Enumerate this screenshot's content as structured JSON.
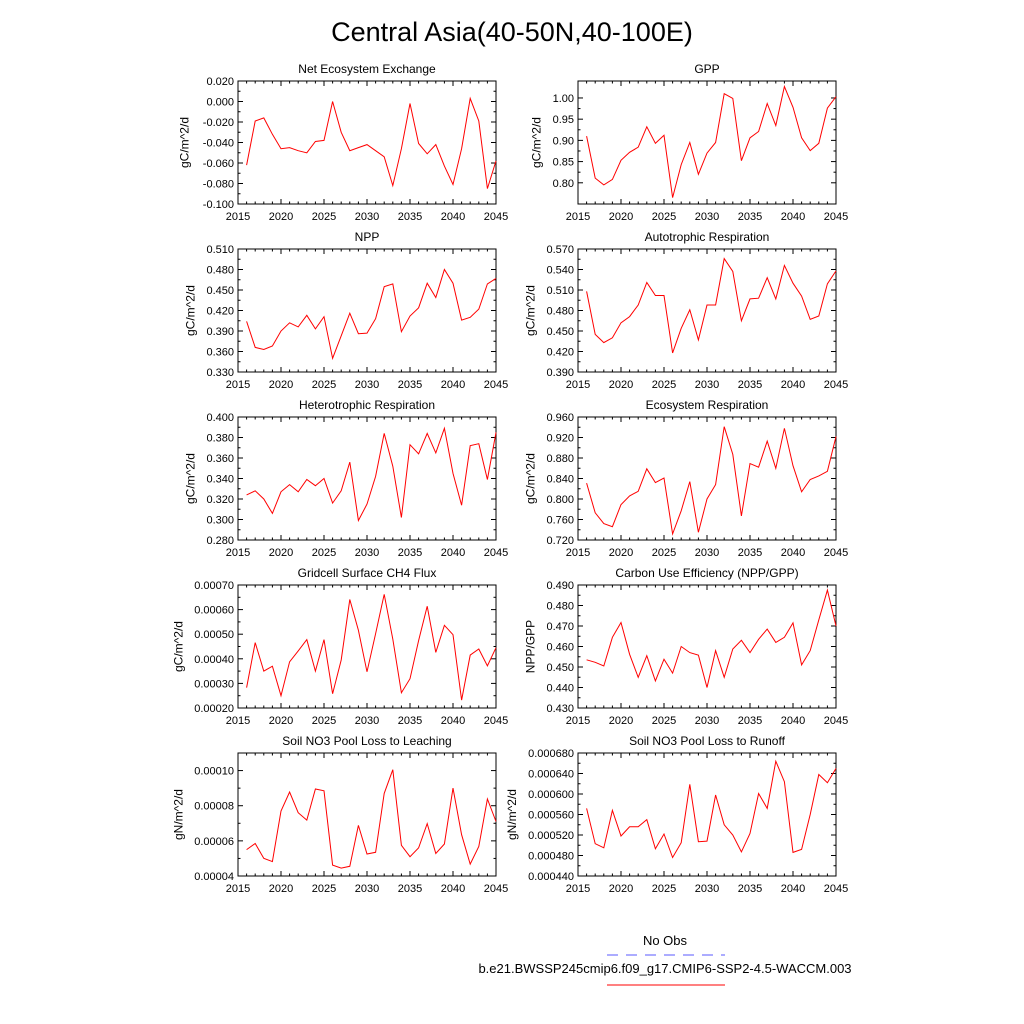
{
  "figure": {
    "title": "Central Asia(40-50N,40-100E)",
    "line_color": "#ff0000",
    "obs_line_color": "#5a5aff",
    "legend": {
      "obs_label": "No Obs",
      "model_label": "b.e21.BWSSP245cmip6.f09_g17.CMIP6-SSP2-4.5-WACCM.003"
    }
  },
  "chart_data": [
    {
      "type": "line",
      "title": "Net Ecosystem Exchange",
      "xlabel": "",
      "ylabel": "gC/m^2/d",
      "xlim": [
        2015,
        2045
      ],
      "ylim": [
        -0.1,
        0.02
      ],
      "xticks": [
        2015,
        2020,
        2025,
        2030,
        2035,
        2040,
        2045
      ],
      "yticks": [
        -0.1,
        -0.08,
        -0.06,
        -0.04,
        -0.02,
        0.0,
        0.02
      ],
      "ytick_labels": [
        "-0.100",
        "-0.080",
        "-0.060",
        "-0.040",
        "-0.020",
        "0.000",
        "0.020"
      ],
      "x": [
        2016,
        2017,
        2018,
        2019,
        2020,
        2021,
        2022,
        2023,
        2024,
        2025,
        2026,
        2027,
        2028,
        2029,
        2030,
        2031,
        2032,
        2033,
        2034,
        2035,
        2036,
        2037,
        2038,
        2039,
        2040,
        2041,
        2042,
        2043,
        2044,
        2045
      ],
      "values": [
        -0.062,
        -0.019,
        -0.016,
        -0.032,
        -0.046,
        -0.045,
        -0.048,
        -0.05,
        -0.039,
        -0.038,
        0.0,
        -0.03,
        -0.048,
        -0.045,
        -0.042,
        -0.048,
        -0.054,
        -0.082,
        -0.046,
        -0.002,
        -0.041,
        -0.051,
        -0.042,
        -0.063,
        -0.081,
        -0.046,
        0.003,
        -0.019,
        -0.085,
        -0.058
      ]
    },
    {
      "type": "line",
      "title": "GPP",
      "xlabel": "",
      "ylabel": "gC/m^2/d",
      "xlim": [
        2015,
        2045
      ],
      "ylim": [
        0.75,
        1.04
      ],
      "xticks": [
        2015,
        2020,
        2025,
        2030,
        2035,
        2040,
        2045
      ],
      "yticks": [
        0.8,
        0.85,
        0.9,
        0.95,
        1.0
      ],
      "ytick_labels": [
        "0.80",
        "0.85",
        "0.90",
        "0.95",
        "1.00"
      ],
      "x": [
        2016,
        2017,
        2018,
        2019,
        2020,
        2021,
        2022,
        2023,
        2024,
        2025,
        2026,
        2027,
        2028,
        2029,
        2030,
        2031,
        2032,
        2033,
        2034,
        2035,
        2036,
        2037,
        2038,
        2039,
        2040,
        2041,
        2042,
        2043,
        2044,
        2045
      ],
      "values": [
        0.91,
        0.811,
        0.795,
        0.808,
        0.853,
        0.872,
        0.884,
        0.932,
        0.893,
        0.912,
        0.765,
        0.843,
        0.895,
        0.82,
        0.87,
        0.895,
        1.01,
        0.999,
        0.852,
        0.906,
        0.921,
        0.987,
        0.935,
        1.027,
        0.978,
        0.906,
        0.876,
        0.893,
        0.976,
        1.003
      ]
    },
    {
      "type": "line",
      "title": "NPP",
      "xlabel": "",
      "ylabel": "gC/m^2/d",
      "xlim": [
        2015,
        2045
      ],
      "ylim": [
        0.33,
        0.51
      ],
      "xticks": [
        2015,
        2020,
        2025,
        2030,
        2035,
        2040,
        2045
      ],
      "yticks": [
        0.33,
        0.36,
        0.39,
        0.42,
        0.45,
        0.48,
        0.51
      ],
      "ytick_labels": [
        "0.330",
        "0.360",
        "0.390",
        "0.420",
        "0.450",
        "0.480",
        "0.510"
      ],
      "x": [
        2016,
        2017,
        2018,
        2019,
        2020,
        2021,
        2022,
        2023,
        2024,
        2025,
        2026,
        2027,
        2028,
        2029,
        2030,
        2031,
        2032,
        2033,
        2034,
        2035,
        2036,
        2037,
        2038,
        2039,
        2040,
        2041,
        2042,
        2043,
        2044,
        2045
      ],
      "values": [
        0.404,
        0.366,
        0.363,
        0.368,
        0.39,
        0.402,
        0.396,
        0.413,
        0.393,
        0.411,
        0.35,
        0.383,
        0.416,
        0.386,
        0.387,
        0.408,
        0.455,
        0.459,
        0.389,
        0.412,
        0.424,
        0.46,
        0.439,
        0.48,
        0.46,
        0.406,
        0.41,
        0.422,
        0.459,
        0.467
      ]
    },
    {
      "type": "line",
      "title": "Autotrophic Respiration",
      "xlabel": "",
      "ylabel": "gC/m^2/d",
      "xlim": [
        2015,
        2045
      ],
      "ylim": [
        0.39,
        0.57
      ],
      "xticks": [
        2015,
        2020,
        2025,
        2030,
        2035,
        2040,
        2045
      ],
      "yticks": [
        0.39,
        0.42,
        0.45,
        0.48,
        0.51,
        0.54,
        0.57
      ],
      "ytick_labels": [
        "0.390",
        "0.420",
        "0.450",
        "0.480",
        "0.510",
        "0.540",
        "0.570"
      ],
      "x": [
        2016,
        2017,
        2018,
        2019,
        2020,
        2021,
        2022,
        2023,
        2024,
        2025,
        2026,
        2027,
        2028,
        2029,
        2030,
        2031,
        2032,
        2033,
        2034,
        2035,
        2036,
        2037,
        2038,
        2039,
        2040,
        2041,
        2042,
        2043,
        2044,
        2045
      ],
      "values": [
        0.508,
        0.445,
        0.433,
        0.44,
        0.462,
        0.471,
        0.488,
        0.521,
        0.502,
        0.502,
        0.418,
        0.454,
        0.481,
        0.437,
        0.488,
        0.488,
        0.556,
        0.537,
        0.465,
        0.497,
        0.498,
        0.528,
        0.497,
        0.546,
        0.52,
        0.501,
        0.467,
        0.472,
        0.519,
        0.538
      ]
    },
    {
      "type": "line",
      "title": "Heterotrophic Respiration",
      "xlabel": "",
      "ylabel": "gC/m^2/d",
      "xlim": [
        2015,
        2045
      ],
      "ylim": [
        0.28,
        0.4
      ],
      "xticks": [
        2015,
        2020,
        2025,
        2030,
        2035,
        2040,
        2045
      ],
      "yticks": [
        0.28,
        0.3,
        0.32,
        0.34,
        0.36,
        0.38,
        0.4
      ],
      "ytick_labels": [
        "0.280",
        "0.300",
        "0.320",
        "0.340",
        "0.360",
        "0.380",
        "0.400"
      ],
      "x": [
        2016,
        2017,
        2018,
        2019,
        2020,
        2021,
        2022,
        2023,
        2024,
        2025,
        2026,
        2027,
        2028,
        2029,
        2030,
        2031,
        2032,
        2033,
        2034,
        2035,
        2036,
        2037,
        2038,
        2039,
        2040,
        2041,
        2042,
        2043,
        2044,
        2045
      ],
      "values": [
        0.324,
        0.328,
        0.32,
        0.306,
        0.327,
        0.334,
        0.327,
        0.339,
        0.333,
        0.34,
        0.316,
        0.328,
        0.356,
        0.299,
        0.315,
        0.342,
        0.384,
        0.352,
        0.302,
        0.373,
        0.364,
        0.384,
        0.365,
        0.389,
        0.345,
        0.314,
        0.372,
        0.374,
        0.339,
        0.385
      ]
    },
    {
      "type": "line",
      "title": "Ecosystem Respiration",
      "xlabel": "",
      "ylabel": "gC/m^2/d",
      "xlim": [
        2015,
        2045
      ],
      "ylim": [
        0.72,
        0.96
      ],
      "xticks": [
        2015,
        2020,
        2025,
        2030,
        2035,
        2040,
        2045
      ],
      "yticks": [
        0.72,
        0.76,
        0.8,
        0.84,
        0.88,
        0.92,
        0.96
      ],
      "ytick_labels": [
        "0.720",
        "0.760",
        "0.800",
        "0.840",
        "0.880",
        "0.920",
        "0.960"
      ],
      "x": [
        2016,
        2017,
        2018,
        2019,
        2020,
        2021,
        2022,
        2023,
        2024,
        2025,
        2026,
        2027,
        2028,
        2029,
        2030,
        2031,
        2032,
        2033,
        2034,
        2035,
        2036,
        2037,
        2038,
        2039,
        2040,
        2041,
        2042,
        2043,
        2044,
        2045
      ],
      "values": [
        0.831,
        0.773,
        0.752,
        0.746,
        0.789,
        0.806,
        0.815,
        0.859,
        0.832,
        0.841,
        0.732,
        0.777,
        0.834,
        0.735,
        0.8,
        0.828,
        0.941,
        0.887,
        0.767,
        0.869,
        0.862,
        0.913,
        0.86,
        0.938,
        0.865,
        0.814,
        0.838,
        0.845,
        0.854,
        0.922
      ]
    },
    {
      "type": "line",
      "title": "Gridcell Surface CH4 Flux",
      "xlabel": "",
      "ylabel": "gC/m^2/d",
      "xlim": [
        2015,
        2045
      ],
      "ylim": [
        0.0002,
        0.0007
      ],
      "xticks": [
        2015,
        2020,
        2025,
        2030,
        2035,
        2040,
        2045
      ],
      "yticks": [
        0.0002,
        0.0003,
        0.0004,
        0.0005,
        0.0006,
        0.0007
      ],
      "ytick_labels": [
        "0.00020",
        "0.00030",
        "0.00040",
        "0.00050",
        "0.00060",
        "0.00070"
      ],
      "x": [
        2016,
        2017,
        2018,
        2019,
        2020,
        2021,
        2022,
        2023,
        2024,
        2025,
        2026,
        2027,
        2028,
        2029,
        2030,
        2031,
        2032,
        2033,
        2034,
        2035,
        2036,
        2037,
        2038,
        2039,
        2040,
        2041,
        2042,
        2043,
        2044,
        2045
      ],
      "values": [
        0.000283,
        0.000466,
        0.00035,
        0.00037,
        0.00025,
        0.000388,
        0.000432,
        0.000478,
        0.00035,
        0.000478,
        0.000258,
        0.000395,
        0.000641,
        0.000516,
        0.000347,
        0.000502,
        0.000662,
        0.00048,
        0.000262,
        0.000319,
        0.000474,
        0.000614,
        0.000426,
        0.000536,
        0.000498,
        0.000232,
        0.000415,
        0.00044,
        0.000371,
        0.000445
      ]
    },
    {
      "type": "line",
      "title": "Carbon Use Efficiency (NPP/GPP)",
      "xlabel": "",
      "ylabel": "NPP/GPP",
      "xlim": [
        2015,
        2045
      ],
      "ylim": [
        0.43,
        0.49
      ],
      "xticks": [
        2015,
        2020,
        2025,
        2030,
        2035,
        2040,
        2045
      ],
      "yticks": [
        0.43,
        0.44,
        0.45,
        0.46,
        0.47,
        0.48,
        0.49
      ],
      "ytick_labels": [
        "0.430",
        "0.440",
        "0.450",
        "0.460",
        "0.470",
        "0.480",
        "0.490"
      ],
      "x": [
        2016,
        2017,
        2018,
        2019,
        2020,
        2021,
        2022,
        2023,
        2024,
        2025,
        2026,
        2027,
        2028,
        2029,
        2030,
        2031,
        2032,
        2033,
        2034,
        2035,
        2036,
        2037,
        2038,
        2039,
        2040,
        2041,
        2042,
        2043,
        2044,
        2045
      ],
      "values": [
        0.4535,
        0.4523,
        0.4505,
        0.4645,
        0.4717,
        0.4562,
        0.445,
        0.4555,
        0.4432,
        0.4538,
        0.447,
        0.46,
        0.457,
        0.4558,
        0.44,
        0.458,
        0.445,
        0.4588,
        0.463,
        0.457,
        0.4635,
        0.4685,
        0.462,
        0.4645,
        0.4715,
        0.451,
        0.458,
        0.473,
        0.4875,
        0.47
      ]
    },
    {
      "type": "line",
      "title": "Soil NO3 Pool Loss to Leaching",
      "xlabel": "",
      "ylabel": "gN/m^2/d",
      "xlim": [
        2015,
        2045
      ],
      "ylim": [
        4e-05,
        0.00011
      ],
      "xticks": [
        2015,
        2020,
        2025,
        2030,
        2035,
        2040,
        2045
      ],
      "yticks": [
        4e-05,
        6e-05,
        8e-05,
        0.0001
      ],
      "ytick_labels": [
        "0.00004",
        "0.00006",
        "0.00008",
        "0.00010"
      ],
      "x": [
        2016,
        2017,
        2018,
        2019,
        2020,
        2021,
        2022,
        2023,
        2024,
        2025,
        2026,
        2027,
        2028,
        2029,
        2030,
        2031,
        2032,
        2033,
        2034,
        2035,
        2036,
        2037,
        2038,
        2039,
        2040,
        2041,
        2042,
        2043,
        2044,
        2045
      ],
      "values": [
        5.5e-05,
        5.85e-05,
        5e-05,
        4.82e-05,
        7.7e-05,
        8.78e-05,
        7.6e-05,
        7.18e-05,
        8.95e-05,
        8.85e-05,
        4.62e-05,
        4.45e-05,
        4.55e-05,
        6.88e-05,
        5.25e-05,
        5.35e-05,
        8.7e-05,
        0.0001005,
        5.75e-05,
        5.1e-05,
        5.6e-05,
        6.98e-05,
        5.28e-05,
        5.82e-05,
        9e-05,
        6.35e-05,
        4.68e-05,
        5.68e-05,
        8.38e-05,
        7.1e-05
      ]
    },
    {
      "type": "line",
      "title": "Soil NO3 Pool Loss to Runoff",
      "xlabel": "",
      "ylabel": "gN/m^2/d",
      "xlim": [
        2015,
        2045
      ],
      "ylim": [
        0.00044,
        0.00068
      ],
      "xticks": [
        2015,
        2020,
        2025,
        2030,
        2035,
        2040,
        2045
      ],
      "yticks": [
        0.00044,
        0.00048,
        0.00052,
        0.00056,
        0.0006,
        0.00064,
        0.00068
      ],
      "ytick_labels": [
        "0.000440",
        "0.000480",
        "0.000520",
        "0.000560",
        "0.000600",
        "0.000640",
        "0.000680"
      ],
      "x": [
        2016,
        2017,
        2018,
        2019,
        2020,
        2021,
        2022,
        2023,
        2024,
        2025,
        2026,
        2027,
        2028,
        2029,
        2030,
        2031,
        2032,
        2033,
        2034,
        2035,
        2036,
        2037,
        2038,
        2039,
        2040,
        2041,
        2042,
        2043,
        2044,
        2045
      ],
      "values": [
        0.000572,
        0.000503,
        0.000495,
        0.000568,
        0.000518,
        0.000536,
        0.000536,
        0.00055,
        0.000493,
        0.000522,
        0.000476,
        0.000505,
        0.000619,
        0.000507,
        0.000508,
        0.000598,
        0.00054,
        0.00052,
        0.000487,
        0.000523,
        0.000601,
        0.000572,
        0.000664,
        0.000624,
        0.000486,
        0.000492,
        0.00056,
        0.000638,
        0.000622,
        0.00065
      ]
    }
  ]
}
